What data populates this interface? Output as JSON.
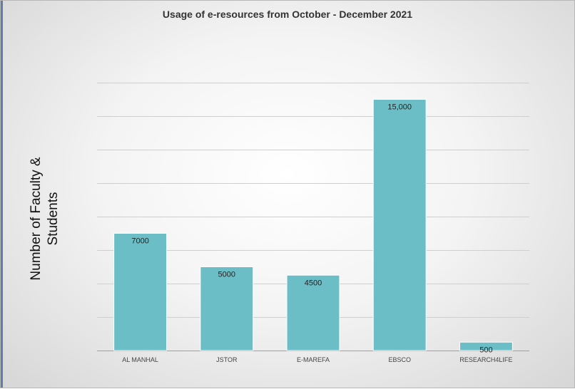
{
  "chart_data": {
    "type": "bar",
    "title": "Usage of e-resources from October - December 2021",
    "xlabel": "",
    "ylabel_lines": [
      "Number of Faculty &",
      "Students"
    ],
    "categories": [
      "AL MANHAL",
      "JSTOR",
      "E-MAREFA",
      "EBSCO",
      "RESEARCH4LIFE"
    ],
    "values": [
      7000,
      5000,
      4500,
      15000,
      500
    ],
    "data_labels": [
      "7000",
      "5000",
      "4500",
      "15,000",
      "500"
    ],
    "ylim": [
      0,
      16000
    ],
    "grid": true,
    "legend": "none",
    "bar_color": "#6cbec6"
  }
}
